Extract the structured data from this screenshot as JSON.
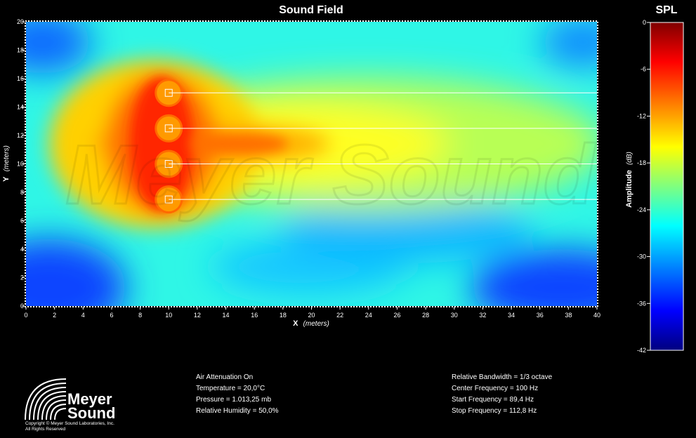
{
  "chart_data": {
    "type": "heatmap",
    "title": "Sound Field",
    "xlabel": "X",
    "xlabel_unit": "(meters)",
    "ylabel": "Y",
    "ylabel_unit": "(meters)",
    "xlim": [
      0,
      40
    ],
    "ylim": [
      0,
      20
    ],
    "x_ticks": [
      "0",
      "2",
      "4",
      "6",
      "8",
      "10",
      "12",
      "14",
      "16",
      "18",
      "20",
      "22",
      "24",
      "26",
      "28",
      "30",
      "32",
      "34",
      "36",
      "38",
      "40"
    ],
    "y_ticks": [
      "0",
      "2",
      "4",
      "6",
      "8",
      "10",
      "12",
      "14",
      "16",
      "18",
      "20"
    ],
    "sources": [
      {
        "x": 10,
        "y": 15
      },
      {
        "x": 10,
        "y": 12.5
      },
      {
        "x": 10,
        "y": 10
      },
      {
        "x": 10,
        "y": 7.5
      }
    ],
    "colorbar": {
      "title": "SPL",
      "label": "Amplitude",
      "unit": "(dB)",
      "range": [
        -42,
        0
      ],
      "ticks": [
        "0",
        "-6",
        "-12",
        "-18",
        "-24",
        "-30",
        "-36",
        "-42"
      ],
      "colors": [
        "#00007f",
        "#0000ff",
        "#007fff",
        "#00ffff",
        "#7fff7f",
        "#ffff00",
        "#ff7f00",
        "#ff0000",
        "#7f0000"
      ]
    },
    "watermark": "Meyer Sound"
  },
  "info_left": {
    "line1": "Air Attenuation On",
    "line2": "Temperature = 20,0°C",
    "line3": "Pressure = 1.013,25  mb",
    "line4": "Relative Humidity = 50,0%"
  },
  "info_right": {
    "line1": "Relative Bandwidth = 1/3 octave",
    "line2": "Center Frequency = 100 Hz",
    "line3": "Start Frequency = 89,4 Hz",
    "line4": "Stop Frequency = 112,8 Hz"
  },
  "logo": {
    "word1": "Meyer",
    "word2": "Sound",
    "copyright1": "Copyright © Meyer Sound Laboratories, Inc.",
    "copyright2": "All Rights Reserved"
  }
}
